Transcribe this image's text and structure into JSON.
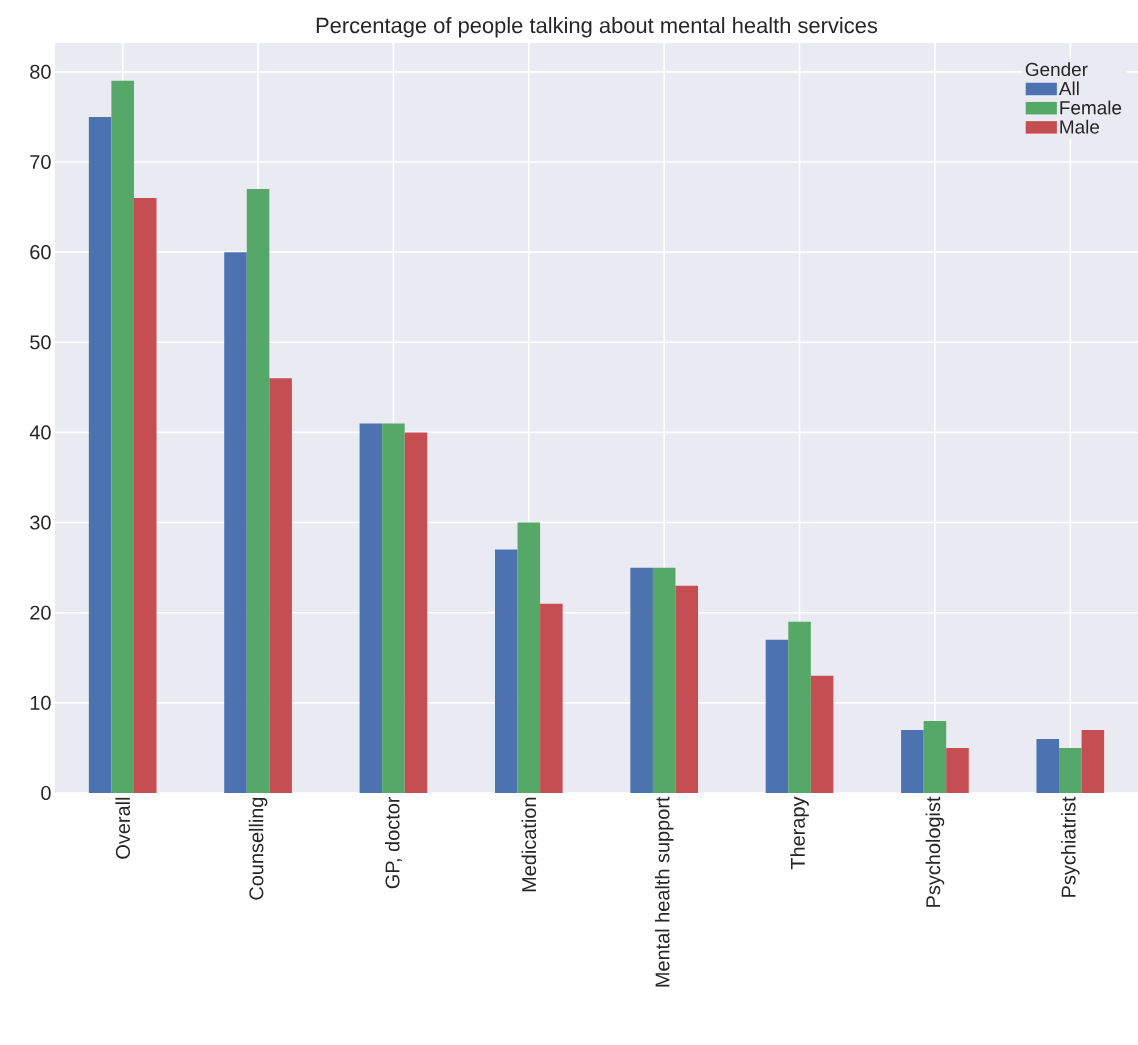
{
  "chart_data": {
    "type": "bar",
    "title": "Percentage of people talking about mental health services",
    "categories": [
      "Overall",
      "Counselling",
      "GP, doctor",
      "Medication",
      "Mental health support",
      "Therapy",
      "Psychologist",
      "Psychiatrist"
    ],
    "series": [
      {
        "name": "All",
        "color": "#4c72b0",
        "values": [
          75,
          60,
          41,
          27,
          25,
          17,
          7,
          6
        ]
      },
      {
        "name": "Female",
        "color": "#55a868",
        "values": [
          79,
          67,
          41,
          30,
          25,
          19,
          8,
          5
        ]
      },
      {
        "name": "Male",
        "color": "#c44e52",
        "values": [
          66,
          46,
          40,
          21,
          23,
          13,
          5,
          7
        ]
      }
    ],
    "legend_title": "Gender",
    "ylim": [
      0,
      83.2
    ],
    "yticks": [
      0,
      10,
      20,
      30,
      40,
      50,
      60,
      70,
      80
    ],
    "grid": true,
    "legend": "top right"
  }
}
